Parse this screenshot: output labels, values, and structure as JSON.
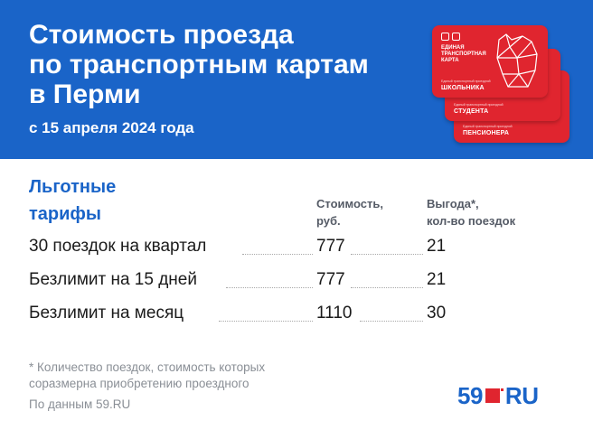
{
  "header": {
    "title_lines": [
      "Стоимость проезда",
      "по транспортным картам",
      "в Перми"
    ],
    "subtitle": "с 15 апреля 2024 года",
    "bg_color": "#1a64c8"
  },
  "cards": [
    {
      "heading_lines": [
        "ЕДИНАЯ",
        "ТРАНСПОРТНАЯ",
        "КАРТА"
      ],
      "small": "Единый транспортный проездной",
      "label": "ШКОЛЬНИКА"
    },
    {
      "small": "Единый транспортный проездной",
      "label": "СТУДЕНТА"
    },
    {
      "small": "Единый транспортный проездной",
      "label": "ПЕНСИОНЕРА"
    }
  ],
  "table": {
    "title_lines": [
      "Льготные",
      "тарифы"
    ],
    "col_cost_lines": [
      "Стоимость,",
      "руб."
    ],
    "col_benefit_lines": [
      "Выгода*,",
      "кол-во поездок"
    ],
    "rows": [
      {
        "name": "30 поездок на квартал",
        "price": "777",
        "trips": "21"
      },
      {
        "name": "Безлимит на 15 дней",
        "price": "777",
        "trips": "21"
      },
      {
        "name": "Безлимит на месяц",
        "price": "1110",
        "trips": "30"
      }
    ]
  },
  "footnote_lines": [
    "* Количество поездок, стоимость которых",
    "соразмерна приобретению проездного"
  ],
  "source": "По данным 59.RU",
  "logo": {
    "num": "59",
    "ru": "RU"
  },
  "colors": {
    "accent_blue": "#1a64c8",
    "card_red": "#e0252f",
    "text_gray": "#8a8f96"
  }
}
